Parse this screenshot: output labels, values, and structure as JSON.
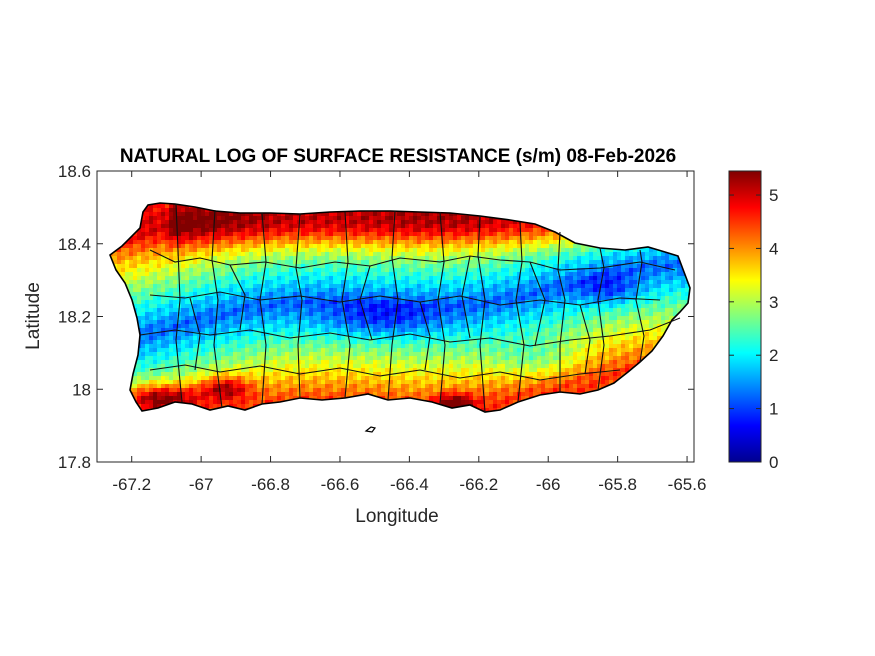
{
  "chart_data": {
    "type": "heatmap",
    "title": "NATURAL LOG OF SURFACE RESISTANCE (s/m) 08-Feb-2026",
    "xlabel": "Longitude",
    "ylabel": "Latitude",
    "xlim": [
      -67.3,
      -65.58
    ],
    "ylim": [
      17.8,
      18.6
    ],
    "xticks": [
      -67.2,
      -67,
      -66.8,
      -66.6,
      -66.4,
      -66.2,
      -66,
      -65.8,
      -65.6
    ],
    "xtick_labels": [
      "-67.2",
      "-67",
      "-66.8",
      "-66.6",
      "-66.4",
      "-66.2",
      "-66",
      "-65.8",
      "-65.6"
    ],
    "yticks": [
      17.8,
      18,
      18.2,
      18.4,
      18.6
    ],
    "ytick_labels": [
      "17.8",
      "18",
      "18.2",
      "18.4",
      "18.6"
    ],
    "colorbar": {
      "colormap": "jet",
      "range": [
        0,
        5.45
      ],
      "ticks": [
        0,
        1,
        2,
        3,
        4,
        5
      ],
      "tick_labels": [
        "0",
        "1",
        "2",
        "3",
        "4",
        "5"
      ]
    },
    "grid": false,
    "region": "Puerto Rico",
    "features": [
      {
        "description": "low-resistance band along central mountains",
        "lon_range": [
          -66.9,
          -65.75
        ],
        "value": 0.8
      },
      {
        "description": "high-resistance southwest coast",
        "lon": -67.1,
        "lat": 17.98,
        "value": 5.0
      },
      {
        "description": "high-resistance north coast",
        "lon_range": [
          -67.1,
          -65.9
        ],
        "lat": 18.45,
        "value": 3.8
      }
    ]
  }
}
